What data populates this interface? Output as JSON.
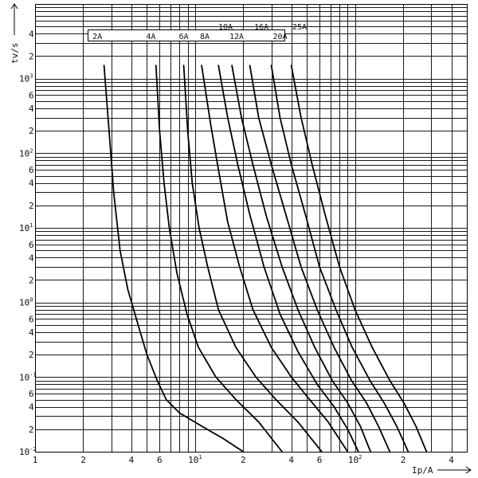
{
  "chart_data": {
    "type": "line",
    "x_scale": "log",
    "y_scale": "log",
    "xlim": [
      1,
      500
    ],
    "ylim": [
      0.01,
      10000
    ],
    "grid": true,
    "xlabel": "Ip/A",
    "ylabel": "tv/s",
    "x_ticks": [
      {
        "value": 1,
        "base": "1",
        "exp": ""
      },
      {
        "value": 2,
        "base": "2",
        "exp": ""
      },
      {
        "value": 4,
        "base": "4",
        "exp": ""
      },
      {
        "value": 6,
        "base": "6",
        "exp": ""
      },
      {
        "value": 10,
        "base": "10",
        "exp": "1"
      },
      {
        "value": 20,
        "base": "2",
        "exp": ""
      },
      {
        "value": 40,
        "base": "4",
        "exp": ""
      },
      {
        "value": 60,
        "base": "6",
        "exp": ""
      },
      {
        "value": 100,
        "base": "10",
        "exp": "2"
      },
      {
        "value": 200,
        "base": "2",
        "exp": ""
      },
      {
        "value": 400,
        "base": "4",
        "exp": ""
      }
    ],
    "y_ticks": [
      {
        "value": 0.01,
        "base": "10",
        "exp": "-2"
      },
      {
        "value": 0.02,
        "base": "2",
        "exp": ""
      },
      {
        "value": 0.04,
        "base": "4",
        "exp": ""
      },
      {
        "value": 0.06,
        "base": "6",
        "exp": ""
      },
      {
        "value": 0.1,
        "base": "10",
        "exp": "-1"
      },
      {
        "value": 0.2,
        "base": "2",
        "exp": ""
      },
      {
        "value": 0.4,
        "base": "4",
        "exp": ""
      },
      {
        "value": 0.6,
        "base": "6",
        "exp": ""
      },
      {
        "value": 1,
        "base": "10",
        "exp": "0"
      },
      {
        "value": 2,
        "base": "2",
        "exp": ""
      },
      {
        "value": 4,
        "base": "4",
        "exp": ""
      },
      {
        "value": 6,
        "base": "6",
        "exp": ""
      },
      {
        "value": 10,
        "base": "10",
        "exp": "1"
      },
      {
        "value": 20,
        "base": "2",
        "exp": ""
      },
      {
        "value": 40,
        "base": "4",
        "exp": ""
      },
      {
        "value": 60,
        "base": "6",
        "exp": ""
      },
      {
        "value": 100,
        "base": "10",
        "exp": "2"
      },
      {
        "value": 200,
        "base": "2",
        "exp": ""
      },
      {
        "value": 400,
        "base": "4",
        "exp": ""
      },
      {
        "value": 600,
        "base": "6",
        "exp": ""
      },
      {
        "value": 1000,
        "base": "10",
        "exp": "3"
      },
      {
        "value": 2000,
        "base": "2",
        "exp": ""
      },
      {
        "value": 4000,
        "base": "4",
        "exp": ""
      }
    ],
    "series": [
      {
        "name": "2A",
        "points": [
          [
            2.7,
            1500
          ],
          [
            2.9,
            200
          ],
          [
            3.1,
            30
          ],
          [
            3.4,
            5
          ],
          [
            3.8,
            1.5
          ],
          [
            4.3,
            0.6
          ],
          [
            5.0,
            0.2
          ],
          [
            5.8,
            0.09
          ],
          [
            6.6,
            0.05
          ],
          [
            8.0,
            0.033
          ],
          [
            11,
            0.022
          ],
          [
            15,
            0.015
          ],
          [
            20,
            0.01
          ]
        ]
      },
      {
        "name": "4A",
        "points": [
          [
            5.7,
            1500
          ],
          [
            6.0,
            200
          ],
          [
            6.4,
            40
          ],
          [
            6.9,
            10
          ],
          [
            7.7,
            2.5
          ],
          [
            8.9,
            0.7
          ],
          [
            10.5,
            0.25
          ],
          [
            13.5,
            0.1
          ],
          [
            18,
            0.05
          ],
          [
            25,
            0.025
          ],
          [
            35,
            0.01
          ]
        ]
      },
      {
        "name": "6A",
        "points": [
          [
            8.5,
            1500
          ],
          [
            9.0,
            200
          ],
          [
            9.6,
            40
          ],
          [
            10.6,
            10
          ],
          [
            12,
            3
          ],
          [
            14,
            0.8
          ],
          [
            18,
            0.25
          ],
          [
            24,
            0.1
          ],
          [
            32,
            0.05
          ],
          [
            44,
            0.025
          ],
          [
            62,
            0.01
          ]
        ]
      },
      {
        "name": "8A",
        "points": [
          [
            11,
            1500
          ],
          [
            12.5,
            250
          ],
          [
            14,
            60
          ],
          [
            16,
            12
          ],
          [
            19,
            3
          ],
          [
            23,
            0.8
          ],
          [
            30,
            0.25
          ],
          [
            40,
            0.1
          ],
          [
            52,
            0.05
          ],
          [
            68,
            0.025
          ],
          [
            90,
            0.01
          ]
        ]
      },
      {
        "name": "10A",
        "points": [
          [
            14,
            1500
          ],
          [
            16,
            300
          ],
          [
            18.5,
            70
          ],
          [
            22,
            15
          ],
          [
            27,
            3
          ],
          [
            34,
            0.7
          ],
          [
            44,
            0.22
          ],
          [
            58,
            0.08
          ],
          [
            74,
            0.04
          ],
          [
            90,
            0.02
          ],
          [
            105,
            0.01
          ]
        ]
      },
      {
        "name": "12A",
        "points": [
          [
            17,
            1500
          ],
          [
            19.5,
            300
          ],
          [
            23,
            70
          ],
          [
            28,
            14
          ],
          [
            35,
            3
          ],
          [
            44,
            0.8
          ],
          [
            56,
            0.25
          ],
          [
            72,
            0.09
          ],
          [
            90,
            0.045
          ],
          [
            108,
            0.022
          ],
          [
            125,
            0.01
          ]
        ]
      },
      {
        "name": "16A",
        "points": [
          [
            22,
            1500
          ],
          [
            25,
            300
          ],
          [
            30,
            70
          ],
          [
            37,
            15
          ],
          [
            46,
            3
          ],
          [
            58,
            0.8
          ],
          [
            74,
            0.25
          ],
          [
            95,
            0.09
          ],
          [
            118,
            0.045
          ],
          [
            140,
            0.022
          ],
          [
            165,
            0.01
          ]
        ]
      },
      {
        "name": "20A",
        "points": [
          [
            30,
            1500
          ],
          [
            34,
            300
          ],
          [
            40,
            70
          ],
          [
            49,
            15
          ],
          [
            60,
            3
          ],
          [
            76,
            0.8
          ],
          [
            96,
            0.25
          ],
          [
            124,
            0.09
          ],
          [
            152,
            0.045
          ],
          [
            182,
            0.022
          ],
          [
            215,
            0.01
          ]
        ]
      },
      {
        "name": "25A",
        "points": [
          [
            40,
            1500
          ],
          [
            46,
            300
          ],
          [
            54,
            70
          ],
          [
            65,
            15
          ],
          [
            80,
            3
          ],
          [
            100,
            0.8
          ],
          [
            128,
            0.25
          ],
          [
            165,
            0.09
          ],
          [
            202,
            0.045
          ],
          [
            240,
            0.022
          ],
          [
            280,
            0.01
          ]
        ]
      }
    ]
  },
  "legend_labels": [
    {
      "text": "2A",
      "anchor": 2.45
    },
    {
      "text": "4A",
      "anchor": 5.3
    },
    {
      "text": "6A",
      "anchor": 8.5
    },
    {
      "text": "8A",
      "anchor": 11.5
    },
    {
      "text": "10A",
      "anchor": 15.5,
      "upper": true
    },
    {
      "text": "12A",
      "anchor": 18.2
    },
    {
      "text": "16A",
      "anchor": 26,
      "upper": true
    },
    {
      "text": "20A",
      "anchor": 34
    },
    {
      "text": "25A",
      "anchor": 45,
      "upper": true
    }
  ]
}
